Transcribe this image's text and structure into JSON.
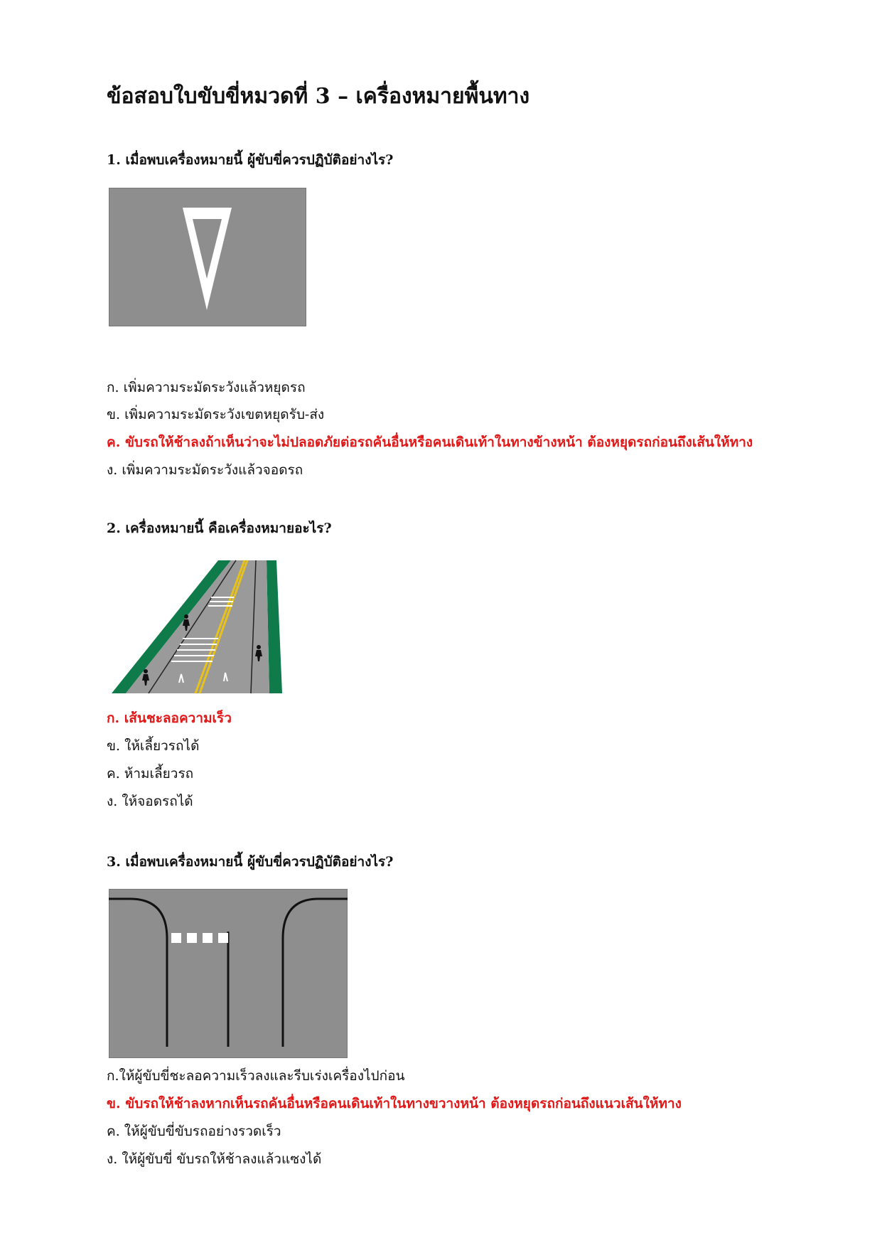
{
  "title": "ข้อสอบใบขับขี่หมวดที่ 3 – เครื่องหมายพื้นทาง",
  "questions": [
    {
      "text": "1. เมื่อพบเครื่องหมายนี้ ผู้ขับขี่ควรปฏิบัติอย่างไร?",
      "options": [
        "ก. เพิ่มความระมัดระวังแล้วหยุดรถ",
        "ข. เพิ่มความระมัดระวังเขตหยุดรับ-ส่ง",
        "ค. ขับรถให้ช้าลงถ้าเห็นว่าจะไม่ปลอดภัยต่อรถคันอื่นหรือคนเดินเท้าในทางข้างหน้า ต้องหยุดรถก่อนถึงเส้นให้ทาง",
        "ง. เพิ่มความระมัดระวังแล้วจอดรถ"
      ],
      "correct_index": 2,
      "image_icon": "yield-triangle-road-marking"
    },
    {
      "text": "2. เครื่องหมายนี้ คือเครื่องหมายอะไร?",
      "options": [
        "ก. เส้นชะลอความเร็ว",
        "ข. ให้เลี้ยวรถได้",
        "ค. ห้ามเลี้ยวรถ",
        "ง. ให้จอดรถได้"
      ],
      "correct_index": 0,
      "image_icon": "slow-down-lines-road-illustration"
    },
    {
      "text": "3. เมื่อพบเครื่องหมายนี้ ผู้ขับขี่ควรปฏิบัติอย่างไร?",
      "options": [
        "ก.ให้ผู้ขับขี่ชะลอความเร็วลงและรีบเร่งเครื่องไปก่อน",
        "ข. ขับรถให้ช้าลงหากเห็นรถคันอื่นหรือคนเดินเท้าในทางขวางหน้า ต้องหยุดรถก่อนถึงแนวเส้นให้ทาง",
        "ค. ให้ผู้ขับขี่ขับรถอย่างรวดเร็ว",
        "ง. ให้ผู้ขับขี่ ขับรถให้ช้าลงแล้วแซงได้"
      ],
      "correct_index": 1,
      "image_icon": "yield-line-intersection-diagram"
    }
  ],
  "colors": {
    "correct": "#e01818",
    "road_gray": "#8e8e8e",
    "road_green": "#0f7a4a",
    "line_yellow": "#e8c21a"
  }
}
